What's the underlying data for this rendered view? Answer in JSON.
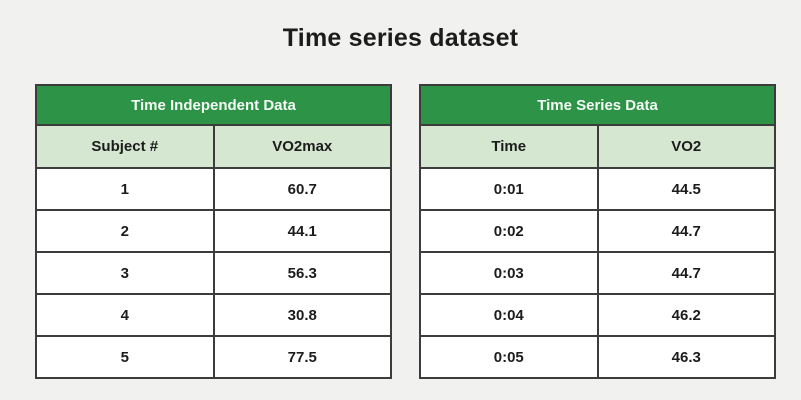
{
  "page": {
    "title": "Time series dataset"
  },
  "colors": {
    "background": "#f1f1ef",
    "header_green": "#2c9347",
    "light_green": "#d5e7d0",
    "border": "#3c3c3c",
    "header_text": "#f4faf4",
    "text": "#1c1c1c"
  },
  "tables": [
    {
      "title": "Time Independent Data",
      "columns": [
        "Subject #",
        "VO2max"
      ],
      "rows": [
        [
          "1",
          "60.7"
        ],
        [
          "2",
          "44.1"
        ],
        [
          "3",
          "56.3"
        ],
        [
          "4",
          "30.8"
        ],
        [
          "5",
          "77.5"
        ]
      ]
    },
    {
      "title": "Time Series Data",
      "columns": [
        "Time",
        "VO2"
      ],
      "rows": [
        [
          "0:01",
          "44.5"
        ],
        [
          "0:02",
          "44.7"
        ],
        [
          "0:03",
          "44.7"
        ],
        [
          "0:04",
          "46.2"
        ],
        [
          "0:05",
          "46.3"
        ]
      ]
    }
  ],
  "chart_data": [
    {
      "type": "table",
      "title": "Time Independent Data",
      "columns": [
        "Subject #",
        "VO2max"
      ],
      "rows": [
        [
          1,
          60.7
        ],
        [
          2,
          44.1
        ],
        [
          3,
          56.3
        ],
        [
          4,
          30.8
        ],
        [
          5,
          77.5
        ]
      ]
    },
    {
      "type": "table",
      "title": "Time Series Data",
      "columns": [
        "Time",
        "VO2"
      ],
      "rows": [
        [
          "0:01",
          44.5
        ],
        [
          "0:02",
          44.7
        ],
        [
          "0:03",
          44.7
        ],
        [
          "0:04",
          46.2
        ],
        [
          "0:05",
          46.3
        ]
      ]
    }
  ]
}
